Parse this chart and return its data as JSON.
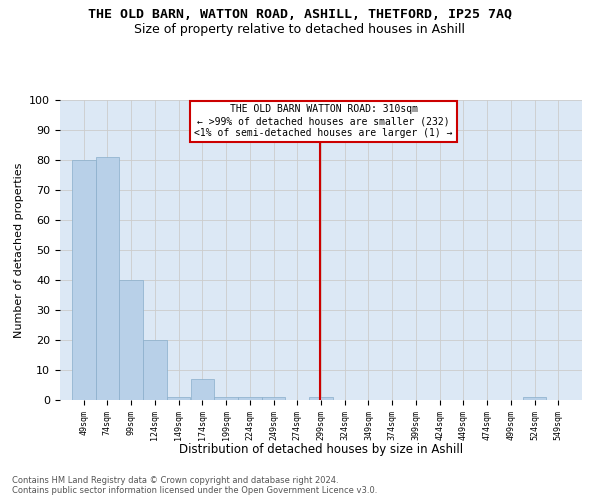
{
  "title": "THE OLD BARN, WATTON ROAD, ASHILL, THETFORD, IP25 7AQ",
  "subtitle": "Size of property relative to detached houses in Ashill",
  "xlabel": "Distribution of detached houses by size in Ashill",
  "ylabel": "Number of detached properties",
  "footer_line1": "Contains HM Land Registry data © Crown copyright and database right 2024.",
  "footer_line2": "Contains public sector information licensed under the Open Government Licence v3.0.",
  "bins": [
    49,
    74,
    99,
    124,
    149,
    174,
    199,
    224,
    249,
    274,
    299,
    324,
    349,
    374,
    399,
    424,
    449,
    474,
    499,
    524,
    549
  ],
  "bar_heights": [
    80,
    81,
    40,
    20,
    1,
    7,
    1,
    1,
    1,
    0,
    1,
    0,
    0,
    0,
    0,
    0,
    0,
    0,
    0,
    1,
    0
  ],
  "bar_color": "#b8d0e8",
  "bar_edge_color": "#89aecb",
  "grid_color": "#cccccc",
  "bg_color": "#dce8f5",
  "red_line_x": 310,
  "red_line_color": "#cc0000",
  "annotation_text": "THE OLD BARN WATTON ROAD: 310sqm\n← >99% of detached houses are smaller (232)\n<1% of semi-detached houses are larger (1) →",
  "annotation_box_color": "#ffffff",
  "annotation_border_color": "#cc0000",
  "ylim": [
    0,
    100
  ],
  "yticks": [
    0,
    10,
    20,
    30,
    40,
    50,
    60,
    70,
    80,
    90,
    100
  ],
  "bin_width": 25,
  "title_fontsize": 9.5,
  "subtitle_fontsize": 9,
  "ylabel_fontsize": 8,
  "xlabel_fontsize": 8.5,
  "xtick_fontsize": 6,
  "ytick_fontsize": 8,
  "annotation_fontsize": 7,
  "footer_fontsize": 6
}
